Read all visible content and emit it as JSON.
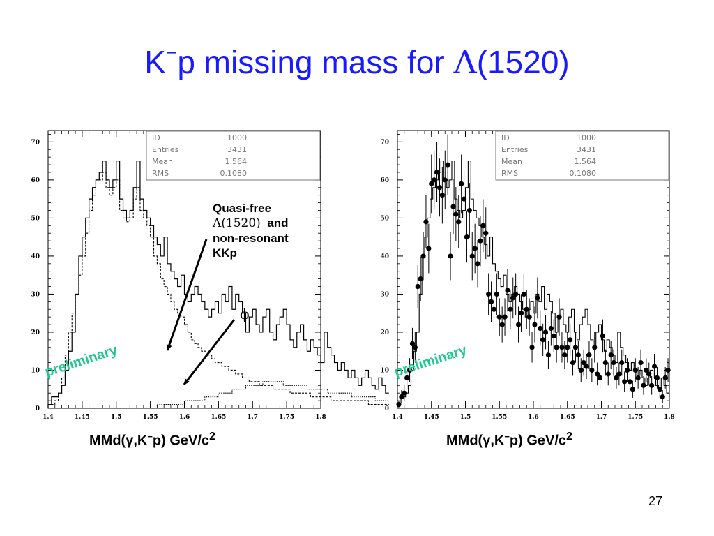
{
  "slide": {
    "title_prefix": "K",
    "title_sup": "−",
    "title_mid": "p missing mass for ",
    "title_greek": "Λ",
    "title_suffix": "(1520)",
    "page_number": "27",
    "watermark": "preliminary",
    "watermark_color": "#1fc98e",
    "title_color": "#1a1aff"
  },
  "annotation": {
    "line1": "Quasi-free",
    "line2_greek": "Λ(1520)",
    "line2_rest": "  and",
    "line3": "non-resonant",
    "line4": "KKp",
    "phi": "ϕ"
  },
  "xlabel": {
    "prefix": "MMd(γ,K",
    "sup": "−",
    "suffix": "p)  GeV/c",
    "power": "2"
  },
  "stats": {
    "rows": [
      {
        "key": "ID",
        "value": "1000"
      },
      {
        "key": "Entries",
        "value": "3431"
      },
      {
        "key": "Mean",
        "value": "1.564"
      },
      {
        "key": "RMS",
        "value": "0.1080"
      }
    ]
  },
  "chart_data": [
    {
      "type": "histogram",
      "xlim": [
        1.4,
        1.8
      ],
      "ylim": [
        0,
        73
      ],
      "x_ticks": [
        "1.4",
        "1.45",
        "1.5",
        "1.55",
        "1.6",
        "1.65",
        "1.7",
        "1.75",
        "1.8"
      ],
      "y_ticks": [
        "0",
        "10",
        "20",
        "30",
        "40",
        "50",
        "60",
        "70"
      ],
      "bin_width": 0.005,
      "bin_start": 1.4,
      "series": [
        {
          "style": "solid",
          "values": [
            1,
            3,
            3,
            4,
            6,
            10,
            15,
            20,
            30,
            40,
            45,
            50,
            55,
            58,
            60,
            62,
            65,
            60,
            58,
            60,
            65,
            55,
            52,
            50,
            52,
            58,
            65,
            55,
            52,
            50,
            48,
            45,
            43,
            40,
            45,
            38,
            36,
            34,
            32,
            35,
            30,
            28,
            30,
            32,
            30,
            28,
            26,
            24,
            26,
            28,
            25,
            30,
            28,
            32,
            26,
            30,
            28,
            25,
            20,
            24,
            26,
            22,
            20,
            24,
            26,
            20,
            18,
            22,
            24,
            26,
            22,
            18,
            16,
            20,
            22,
            18,
            15,
            18,
            16,
            14,
            12,
            20,
            16,
            14,
            12,
            10,
            12,
            10,
            8,
            10,
            8,
            6,
            8,
            10,
            8,
            6,
            5,
            8,
            6,
            4
          ]
        },
        {
          "style": "dashed",
          "values": [
            1,
            1,
            2,
            4,
            8,
            14,
            20,
            25,
            30,
            35,
            40,
            46,
            52,
            56,
            60,
            60,
            62,
            58,
            56,
            58,
            60,
            52,
            50,
            49,
            50,
            55,
            58,
            52,
            50,
            48,
            45,
            40,
            38,
            34,
            32,
            30,
            28,
            26,
            25,
            24,
            22,
            20,
            18,
            17,
            16,
            15,
            15,
            14,
            13,
            12,
            12,
            11,
            11,
            10,
            10,
            9,
            9,
            8,
            8,
            7,
            7,
            7,
            6,
            6,
            6,
            6,
            5,
            5,
            5,
            5,
            5,
            4,
            4,
            4,
            4,
            4,
            4,
            3,
            3,
            3,
            3,
            3,
            3,
            2,
            2,
            2,
            2,
            2,
            2,
            2,
            2,
            2,
            2,
            2,
            1,
            1,
            1,
            1,
            1,
            1
          ]
        },
        {
          "style": "dotted",
          "values": [
            0,
            0,
            0,
            0,
            0,
            0,
            0,
            0,
            0,
            0,
            0,
            0,
            0,
            0,
            0,
            0,
            0,
            0,
            0,
            0,
            0,
            0,
            0,
            0,
            0,
            0,
            0,
            0,
            0,
            0,
            0,
            0,
            1,
            1,
            1,
            1,
            1,
            1,
            1,
            1,
            2,
            2,
            2,
            2,
            2,
            2,
            3,
            3,
            3,
            3,
            4,
            4,
            4,
            4,
            5,
            5,
            5,
            5,
            6,
            6,
            6,
            6,
            6,
            7,
            7,
            7,
            7,
            7,
            7,
            6,
            6,
            6,
            6,
            6,
            6,
            6,
            5,
            5,
            5,
            5,
            5,
            5,
            4,
            4,
            4,
            4,
            4,
            4,
            4,
            3,
            3,
            3,
            3,
            3,
            3,
            3,
            2,
            2,
            2,
            2
          ]
        }
      ]
    },
    {
      "type": "scatter",
      "xlim": [
        1.4,
        1.8
      ],
      "ylim": [
        0,
        73
      ],
      "x_ticks": [
        "1.4",
        "1.45",
        "1.5",
        "1.55",
        "1.6",
        "1.65",
        "1.7",
        "1.75",
        "1.8"
      ],
      "y_ticks": [
        "0",
        "10",
        "20",
        "30",
        "40",
        "50",
        "60",
        "70"
      ],
      "points": {
        "x": [
          1.402,
          1.406,
          1.41,
          1.414,
          1.418,
          1.422,
          1.426,
          1.43,
          1.434,
          1.438,
          1.442,
          1.446,
          1.45,
          1.454,
          1.458,
          1.462,
          1.466,
          1.47,
          1.474,
          1.478,
          1.482,
          1.486,
          1.49,
          1.494,
          1.498,
          1.502,
          1.506,
          1.51,
          1.514,
          1.518,
          1.522,
          1.526,
          1.53,
          1.534,
          1.538,
          1.542,
          1.546,
          1.55,
          1.554,
          1.558,
          1.562,
          1.566,
          1.57,
          1.574,
          1.578,
          1.582,
          1.586,
          1.59,
          1.594,
          1.598,
          1.602,
          1.606,
          1.61,
          1.614,
          1.618,
          1.622,
          1.626,
          1.63,
          1.634,
          1.638,
          1.642,
          1.646,
          1.65,
          1.654,
          1.658,
          1.662,
          1.666,
          1.67,
          1.674,
          1.678,
          1.682,
          1.686,
          1.69,
          1.694,
          1.698,
          1.702,
          1.706,
          1.71,
          1.714,
          1.718,
          1.722,
          1.726,
          1.73,
          1.734,
          1.738,
          1.742,
          1.746,
          1.75,
          1.754,
          1.758,
          1.762,
          1.766,
          1.77,
          1.774,
          1.778,
          1.782,
          1.786,
          1.79,
          1.794,
          1.798
        ],
        "y": [
          1,
          3,
          4,
          8,
          10,
          17,
          16,
          32,
          34,
          40,
          49,
          42,
          59,
          60,
          62,
          58,
          56,
          60,
          64,
          40,
          53,
          51,
          49,
          59,
          55,
          45,
          52,
          40,
          42,
          38,
          44,
          48,
          46,
          30,
          28,
          26,
          30,
          24,
          22,
          24,
          31,
          26,
          29,
          30,
          22,
          25,
          30,
          26,
          24,
          16,
          22,
          29,
          21,
          18,
          20,
          14,
          21,
          19,
          16,
          24,
          16,
          14,
          16,
          18,
          12,
          16,
          14,
          10,
          12,
          11,
          14,
          10,
          16,
          9,
          8,
          19,
          12,
          9,
          14,
          12,
          8,
          9,
          12,
          7,
          10,
          7,
          5,
          10,
          8,
          12,
          6,
          10,
          9,
          6,
          11,
          8,
          5,
          3,
          8,
          10
        ]
      },
      "hist": [
        1,
        3,
        3,
        4,
        6,
        10,
        15,
        20,
        30,
        40,
        45,
        50,
        55,
        58,
        60,
        62,
        65,
        60,
        58,
        60,
        65,
        55,
        52,
        50,
        52,
        58,
        65,
        55,
        52,
        50,
        48,
        45,
        43,
        40,
        45,
        38,
        36,
        34,
        32,
        35,
        30,
        28,
        30,
        32,
        30,
        28,
        26,
        24,
        26,
        28,
        25,
        30,
        28,
        32,
        26,
        30,
        28,
        25,
        20,
        24,
        26,
        22,
        20,
        24,
        26,
        20,
        18,
        22,
        24,
        26,
        22,
        18,
        16,
        20,
        22,
        18,
        15,
        18,
        16,
        14,
        12,
        20,
        16,
        14,
        12,
        10,
        12,
        10,
        8,
        10,
        8,
        6,
        8,
        10,
        8,
        6,
        5,
        8,
        6,
        4
      ]
    }
  ]
}
